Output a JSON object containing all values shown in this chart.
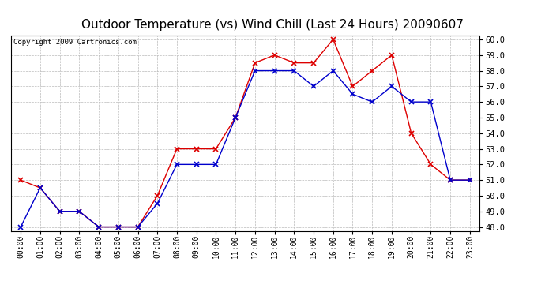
{
  "title": "Outdoor Temperature (vs) Wind Chill (Last 24 Hours) 20090607",
  "copyright": "Copyright 2009 Cartronics.com",
  "hours": [
    "00:00",
    "01:00",
    "02:00",
    "03:00",
    "04:00",
    "05:00",
    "06:00",
    "07:00",
    "08:00",
    "09:00",
    "10:00",
    "11:00",
    "12:00",
    "13:00",
    "14:00",
    "15:00",
    "16:00",
    "17:00",
    "18:00",
    "19:00",
    "20:00",
    "21:00",
    "22:00",
    "23:00"
  ],
  "outdoor_temp": [
    51.0,
    50.5,
    49.0,
    49.0,
    48.0,
    48.0,
    48.0,
    50.0,
    53.0,
    53.0,
    53.0,
    55.0,
    58.5,
    59.0,
    58.5,
    58.5,
    60.0,
    57.0,
    58.0,
    59.0,
    54.0,
    52.0,
    51.0,
    51.0
  ],
  "wind_chill": [
    48.0,
    50.5,
    49.0,
    49.0,
    48.0,
    48.0,
    48.0,
    49.5,
    52.0,
    52.0,
    52.0,
    55.0,
    58.0,
    58.0,
    58.0,
    57.0,
    58.0,
    56.5,
    56.0,
    57.0,
    56.0,
    56.0,
    51.0,
    51.0
  ],
  "temp_color": "#dd0000",
  "wind_chill_color": "#0000cc",
  "ylim_min": 48.0,
  "ylim_max": 60.0,
  "yticks": [
    48.0,
    49.0,
    50.0,
    51.0,
    52.0,
    53.0,
    54.0,
    55.0,
    56.0,
    57.0,
    58.0,
    59.0,
    60.0
  ],
  "grid_color": "#bbbbbb",
  "bg_color": "#ffffff",
  "title_fontsize": 11,
  "copyright_fontsize": 6.5,
  "tick_fontsize": 7,
  "ytick_fontsize": 7.5
}
